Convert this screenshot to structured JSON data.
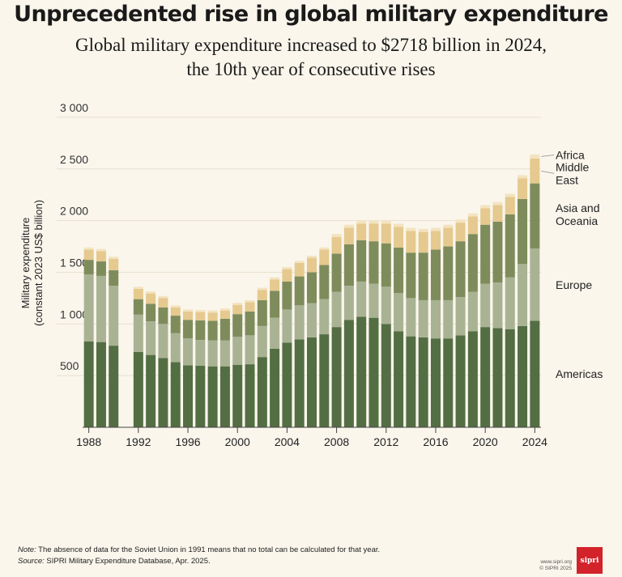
{
  "header": {
    "title": "Unprecedented rise in global military expenditure",
    "subtitle_line1": "Global military expenditure increased to $2718 billion in 2024,",
    "subtitle_line2": "the 10th year of consecutive rises"
  },
  "footer": {
    "note_label": "Note:",
    "note_text": " The absence of data for the Soviet Union in 1991 means that no total can be calculated for that year.",
    "source_label": "Source:",
    "source_text": " SIPRI Military Expenditure Database, Apr. 2025.",
    "site": "www.sipri.org",
    "copyright": "© SIPRI 2025",
    "logo_text": "sipri"
  },
  "colors": {
    "Americas": "#546e44",
    "Europe": "#a9b394",
    "Asia and Oceania": "#7e8c5c",
    "Middle East": "#e5c98e",
    "Africa": "#f3e3c0",
    "background": "#faf6ec",
    "logo": "#d2232a"
  },
  "chart_data": {
    "type": "bar",
    "stacked": true,
    "title": "Unprecedented rise in global military expenditure",
    "ylabel_line1": "Military expenditure",
    "ylabel_line2": "(constant 2023 US$ billion)",
    "xlabel": "",
    "ylim": [
      0,
      3000
    ],
    "yticks": [
      500,
      1000,
      1500,
      2000,
      2500,
      3000
    ],
    "ytick_labels": [
      "500",
      "1 000",
      "1 500",
      "2 000",
      "2 500",
      "3 000"
    ],
    "xtick_labels": [
      "1988",
      "1992",
      "1996",
      "2000",
      "2004",
      "2008",
      "2012",
      "2016",
      "2020",
      "2024"
    ],
    "grid": true,
    "legend": "right, inline labels at 2024 bar",
    "categories": [
      1988,
      1989,
      1990,
      1991,
      1992,
      1993,
      1994,
      1995,
      1996,
      1997,
      1998,
      1999,
      2000,
      2001,
      2002,
      2003,
      2004,
      2005,
      2006,
      2007,
      2008,
      2009,
      2010,
      2011,
      2012,
      2013,
      2014,
      2015,
      2016,
      2017,
      2018,
      2019,
      2020,
      2021,
      2022,
      2023,
      2024
    ],
    "series": [
      {
        "name": "Americas",
        "values": [
          830,
          825,
          790,
          null,
          730,
          700,
          670,
          630,
          600,
          595,
          590,
          590,
          605,
          610,
          680,
          760,
          820,
          850,
          870,
          900,
          970,
          1040,
          1070,
          1060,
          1000,
          930,
          880,
          870,
          860,
          860,
          890,
          930,
          970,
          960,
          950,
          980,
          1030
        ]
      },
      {
        "name": "Europe",
        "values": [
          650,
          640,
          580,
          null,
          360,
          325,
          330,
          280,
          260,
          250,
          250,
          250,
          270,
          280,
          300,
          300,
          320,
          330,
          330,
          340,
          340,
          330,
          340,
          330,
          360,
          370,
          370,
          360,
          370,
          370,
          370,
          380,
          420,
          440,
          500,
          600,
          700
        ]
      },
      {
        "name": "Asia and Oceania",
        "values": [
          140,
          140,
          150,
          null,
          150,
          170,
          160,
          170,
          180,
          190,
          190,
          210,
          220,
          230,
          250,
          260,
          270,
          280,
          300,
          330,
          370,
          400,
          400,
          410,
          420,
          440,
          440,
          460,
          490,
          520,
          540,
          560,
          570,
          590,
          610,
          630,
          630
        ]
      },
      {
        "name": "Middle East",
        "values": [
          100,
          100,
          110,
          null,
          100,
          100,
          90,
          80,
          80,
          80,
          80,
          80,
          90,
          90,
          100,
          110,
          120,
          130,
          140,
          150,
          160,
          160,
          160,
          170,
          190,
          200,
          210,
          200,
          180,
          180,
          180,
          170,
          160,
          160,
          170,
          200,
          240
        ]
      },
      {
        "name": "Africa",
        "values": [
          20,
          20,
          20,
          null,
          20,
          20,
          20,
          20,
          20,
          20,
          20,
          20,
          20,
          20,
          20,
          20,
          20,
          20,
          20,
          20,
          30,
          30,
          30,
          30,
          30,
          30,
          30,
          30,
          30,
          30,
          30,
          30,
          30,
          30,
          30,
          30,
          40
        ]
      }
    ],
    "legend_labels": [
      {
        "series": "Africa",
        "lines": [
          "Africa"
        ]
      },
      {
        "series": "Middle East",
        "lines": [
          "Middle",
          "East"
        ]
      },
      {
        "series": "Asia and Oceania",
        "lines": [
          "Asia and",
          "Oceania"
        ]
      },
      {
        "series": "Europe",
        "lines": [
          "Europe"
        ]
      },
      {
        "series": "Americas",
        "lines": [
          "Americas"
        ]
      }
    ]
  }
}
